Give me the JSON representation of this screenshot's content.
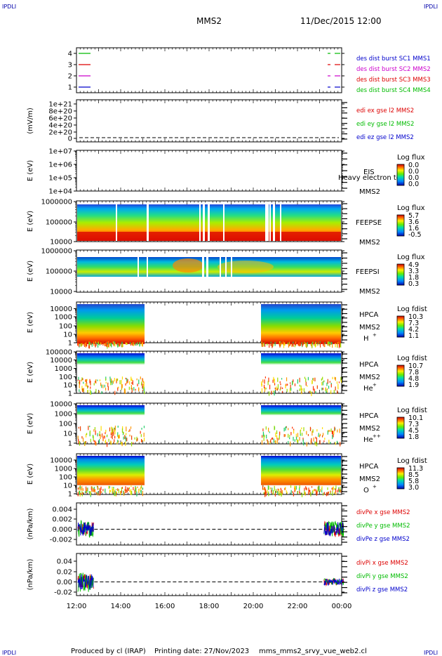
{
  "header": {
    "corner_tl": "IPDLI",
    "corner_tr": "IPDLI",
    "corner_bl": "IPDLI",
    "corner_br": "IPDLI",
    "mission": "MMS2",
    "datetime": "11/Dec/2015 12:00"
  },
  "footer": {
    "produced": "Produced by cl (IRAP)",
    "printing": "Printing date: 27/Nov/2023",
    "script": "mms_mms2_srvy_vue_web2.cl"
  },
  "colors": {
    "red": "#dd0000",
    "green": "#00bb00",
    "blue": "#0000cc",
    "magenta": "#cc00cc",
    "label_blue": "#0000aa"
  },
  "chart_data": [
    {
      "id": "burst",
      "type": "line",
      "y_ticks": [
        "4",
        "3",
        "2",
        "1"
      ],
      "series": [
        {
          "name": "des dist burst SC1 MMS1",
          "color": "#0000cc",
          "level": 1
        },
        {
          "name": "des dist burst SC2 MMS2",
          "color": "#cc00cc",
          "level": 2
        },
        {
          "name": "des dist burst SC3 MMS3",
          "color": "#dd0000",
          "level": 3
        },
        {
          "name": "des dist burst SC4 MMS4",
          "color": "#00bb00",
          "level": 4
        }
      ]
    },
    {
      "id": "edi",
      "type": "line",
      "ylabel": "(mV/m)",
      "y_ticks": [
        "1e+21",
        "8e+20",
        "6e+20",
        "4e+20",
        "2e+20",
        "0"
      ],
      "series": [
        {
          "name": "edi ex gse l2 MMS2",
          "color": "#dd0000"
        },
        {
          "name": "edi ey gse l2 MMS2",
          "color": "#00bb00"
        },
        {
          "name": "edi ez gse l2 MMS2",
          "color": "#0000cc"
        }
      ]
    },
    {
      "id": "eis",
      "type": "heatmap",
      "ylabel": "E (eV)",
      "y_ticks": [
        "1e+07",
        "1e+06",
        "1e+05",
        "1e+04"
      ],
      "instrument": "EIS",
      "species": "Heavy electron to",
      "sc": "MMS2",
      "cb_title": "Log flux",
      "cb_values": [
        "0.0",
        "0.0",
        "0.0",
        "0.0"
      ]
    },
    {
      "id": "feepse",
      "type": "heatmap",
      "ylabel": "E (eV)",
      "y_ticks": [
        "1000000",
        "100000",
        "10000"
      ],
      "instrument": "FEEPSE",
      "sc": "MMS2",
      "cb_title": "Log flux",
      "cb_values": [
        "5.7",
        "3.6",
        "1.6",
        "-0.5"
      ]
    },
    {
      "id": "feepsi",
      "type": "heatmap",
      "ylabel": "E (eV)",
      "y_ticks": [
        "1000000",
        "100000",
        "10000"
      ],
      "instrument": "FEEPSI",
      "sc": "MMS2",
      "cb_title": "Log flux",
      "cb_values": [
        "4.9",
        "3.3",
        "1.8",
        "0.3"
      ]
    },
    {
      "id": "hpca_h",
      "type": "heatmap",
      "ylabel": "E (eV)",
      "y_ticks": [
        "10000",
        "1000",
        "100",
        "10",
        "1"
      ],
      "instrument": "HPCA",
      "sc": "MMS2",
      "ion": "H",
      "charge": "+",
      "cb_title": "Log fdist",
      "cb_values": [
        "10.3",
        "7.3",
        "4.2",
        "1.1"
      ]
    },
    {
      "id": "hpca_he1",
      "type": "heatmap",
      "ylabel": "E (eV)",
      "y_ticks": [
        "100000",
        "10000",
        "1000",
        "100",
        "10",
        "1"
      ],
      "instrument": "HPCA",
      "sc": "MMS2",
      "ion": "He",
      "charge": "+",
      "cb_title": "Log fdist",
      "cb_values": [
        "10.7",
        "7.8",
        "4.8",
        "1.9"
      ]
    },
    {
      "id": "hpca_he2",
      "type": "heatmap",
      "ylabel": "E (eV)",
      "y_ticks": [
        "10000",
        "1000",
        "100",
        "10",
        "1"
      ],
      "instrument": "HPCA",
      "sc": "MMS2",
      "ion": "He",
      "charge": "++",
      "cb_title": "Log fdist",
      "cb_values": [
        "10.1",
        "7.3",
        "4.5",
        "1.8"
      ]
    },
    {
      "id": "hpca_o",
      "type": "heatmap",
      "ylabel": "E (eV)",
      "y_ticks": [
        "10000",
        "1000",
        "100",
        "10",
        "1"
      ],
      "instrument": "HPCA",
      "sc": "MMS2",
      "ion": "O",
      "charge": "+",
      "cb_title": "Log fdist",
      "cb_values": [
        "11.3",
        "8.5",
        "5.8",
        "3.0"
      ]
    },
    {
      "id": "divpe",
      "type": "line",
      "ylabel": "(nPa/km)",
      "y_ticks": [
        "0.004",
        "0.002",
        "0.000",
        "-0.002"
      ],
      "series": [
        {
          "name": "divPe x gse MMS2",
          "color": "#dd0000"
        },
        {
          "name": "divPe y gse MMS2",
          "color": "#00bb00"
        },
        {
          "name": "divPe z gse MMS2",
          "color": "#0000cc"
        }
      ]
    },
    {
      "id": "divpi",
      "type": "line",
      "ylabel": "(nPa/km)",
      "y_ticks": [
        "0.04",
        "0.02",
        "0.00",
        "-0.02"
      ],
      "series": [
        {
          "name": "divPi x gse MMS2",
          "color": "#dd0000"
        },
        {
          "name": "divPi y gse MMS2",
          "color": "#00bb00"
        },
        {
          "name": "divPi z gse MMS2",
          "color": "#0000cc"
        }
      ]
    }
  ],
  "x_axis": {
    "ticks": [
      "12:00",
      "14:00",
      "16:00",
      "18:00",
      "20:00",
      "22:00",
      "00:00"
    ],
    "range": [
      "12:00",
      "00:00"
    ]
  }
}
